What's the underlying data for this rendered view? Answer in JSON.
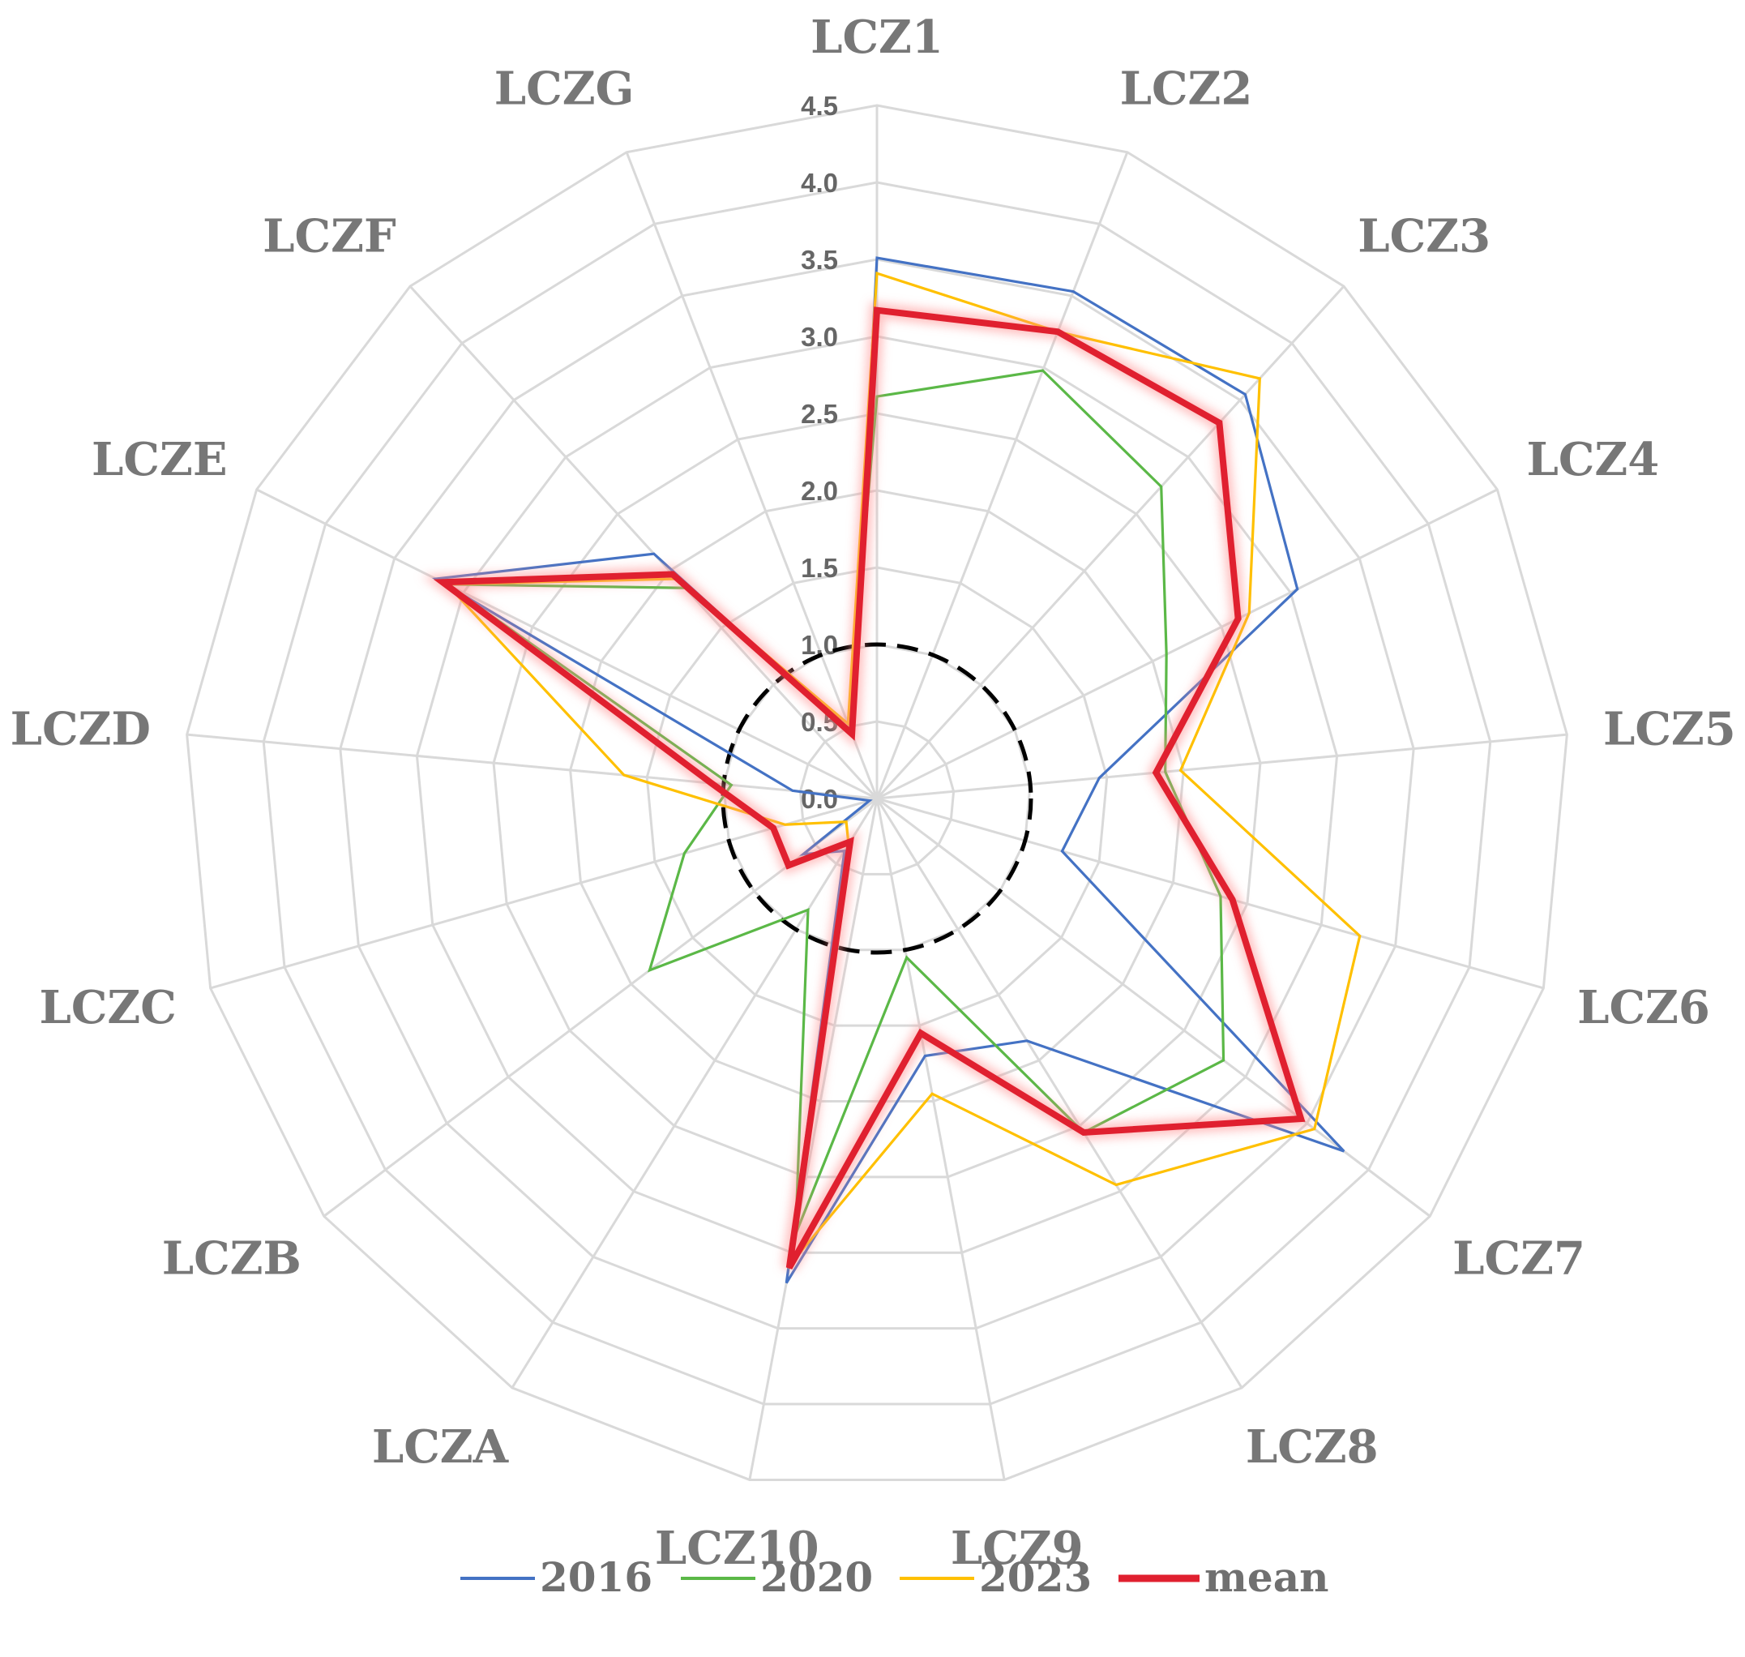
{
  "chart_data": {
    "type": "radar",
    "categories": [
      "LCZ1",
      "LCZ2",
      "LCZ3",
      "LCZ4",
      "LCZ5",
      "LCZ6",
      "LCZ7",
      "LCZ8",
      "LCZ9",
      "LCZ10",
      "LCZA",
      "LCZB",
      "LCZC",
      "LCZD",
      "LCZE",
      "LCZF",
      "LCZG"
    ],
    "radial_ticks": [
      "0.0",
      "0.5",
      "1.0",
      "1.5",
      "2.0",
      "2.5",
      "3.0",
      "3.5",
      "4.0",
      "4.5"
    ],
    "rlim": [
      0,
      4.5
    ],
    "grid": true,
    "reference_circle": {
      "value": 1.0,
      "style": "dashed",
      "color": "#000000"
    },
    "legend_position": "bottom",
    "series": [
      {
        "name": "2016",
        "color": "#4472C4",
        "values": [
          3.51,
          3.53,
          3.55,
          3.05,
          1.45,
          1.25,
          3.8,
          1.85,
          1.7,
          3.2,
          0.4,
          0.6,
          0.05,
          0.55,
          3.2,
          2.15,
          0.45
        ]
      },
      {
        "name": "2020",
        "color": "#5BB847",
        "values": [
          2.61,
          2.98,
          2.74,
          2.1,
          1.88,
          2.32,
          2.82,
          2.55,
          1.05,
          2.88,
          0.85,
          1.85,
          1.3,
          0.95,
          3.12,
          1.85,
          0.52
        ]
      },
      {
        "name": "2023",
        "color": "#FFC000",
        "values": [
          3.41,
          3.25,
          3.69,
          2.7,
          1.98,
          3.26,
          3.56,
          2.95,
          1.95,
          3.08,
          0.35,
          0.25,
          0.62,
          1.65,
          3.12,
          1.93,
          0.52
        ]
      },
      {
        "name": "mean",
        "color": "#E0202F",
        "values": [
          3.17,
          3.25,
          3.3,
          2.62,
          1.82,
          2.4,
          3.45,
          2.55,
          1.55,
          3.1,
          0.33,
          0.72,
          0.7,
          1.08,
          3.15,
          1.97,
          0.45
        ]
      }
    ]
  }
}
